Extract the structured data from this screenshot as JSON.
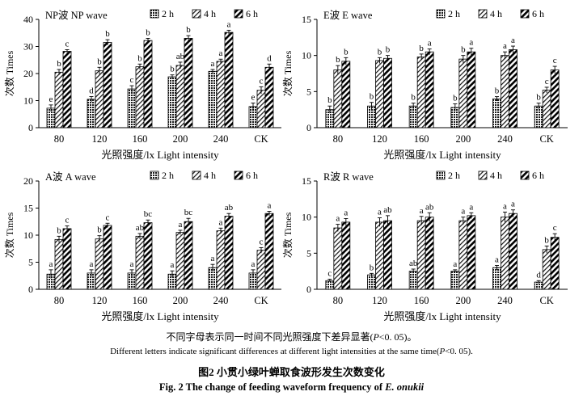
{
  "chart_data": [
    {
      "type": "bar",
      "title": "NP波  NP wave",
      "xlabel": "光照强度/lx Light intensity",
      "ylabel": "次数 Times",
      "ylim": [
        0,
        40
      ],
      "yticks": [
        0,
        10,
        20,
        30,
        40
      ],
      "categories": [
        "80",
        "120",
        "160",
        "200",
        "240",
        "CK"
      ],
      "legend": [
        "2 h",
        "4 h",
        "6 h"
      ],
      "legend_position": "top",
      "grid": false,
      "series": [
        {
          "name": "2 h",
          "values": [
            7.2,
            10.5,
            14.3,
            18.8,
            20.8,
            7.8
          ],
          "errors": [
            1.2,
            1.0,
            1.2,
            0.7,
            0.7,
            1.3
          ],
          "letters": [
            "e",
            "d",
            "c",
            "b",
            "a",
            "e"
          ]
        },
        {
          "name": "4 h",
          "values": [
            20.5,
            21.0,
            22.5,
            23.0,
            24.5,
            13.8
          ],
          "errors": [
            1.0,
            1.3,
            1.0,
            1.2,
            0.8,
            1.3
          ],
          "letters": [
            "b",
            "b",
            "b",
            "ab",
            "a",
            "c"
          ]
        },
        {
          "name": "6 h",
          "values": [
            28.2,
            31.5,
            32.2,
            33.0,
            35.2,
            22.3
          ],
          "errors": [
            0.6,
            1.0,
            0.8,
            1.0,
            0.8,
            1.2
          ],
          "letters": [
            "c",
            "b",
            "b",
            "b",
            "a",
            "d"
          ]
        }
      ]
    },
    {
      "type": "bar",
      "title": "E波 E wave",
      "xlabel": "光照强度/lx Light intensity",
      "ylabel": "次数 Times",
      "ylim": [
        0,
        15
      ],
      "yticks": [
        0,
        5,
        10,
        15
      ],
      "categories": [
        "80",
        "120",
        "160",
        "200",
        "240",
        "CK"
      ],
      "legend": [
        "2 h",
        "4 h",
        "6 h"
      ],
      "legend_position": "top",
      "grid": false,
      "series": [
        {
          "name": "2 h",
          "values": [
            2.5,
            3.0,
            3.0,
            2.8,
            4.0,
            3.0
          ],
          "errors": [
            0.5,
            0.5,
            0.4,
            0.5,
            0.3,
            0.4
          ],
          "letters": [
            "b",
            "b",
            "b",
            "b",
            "b",
            "b"
          ]
        },
        {
          "name": "4 h",
          "values": [
            8.0,
            9.3,
            9.8,
            9.5,
            10.0,
            5.2
          ],
          "errors": [
            0.6,
            0.4,
            0.4,
            0.5,
            0.5,
            0.4
          ],
          "letters": [
            "b",
            "b",
            "b",
            "b",
            "a",
            "c"
          ]
        },
        {
          "name": "6 h",
          "values": [
            9.2,
            9.6,
            10.5,
            10.5,
            10.8,
            8.0
          ],
          "errors": [
            0.5,
            0.4,
            0.4,
            0.5,
            0.5,
            0.5
          ],
          "letters": [
            "b",
            "b",
            "a",
            "a",
            "a",
            "c"
          ]
        }
      ]
    },
    {
      "type": "bar",
      "title": "A波 A wave",
      "xlabel": "光照强度/lx Light intensity",
      "ylabel": "次数 Times",
      "ylim": [
        0,
        20
      ],
      "yticks": [
        0,
        5,
        10,
        15,
        20
      ],
      "categories": [
        "80",
        "120",
        "160",
        "200",
        "240",
        "CK"
      ],
      "legend": [
        "2 h",
        "4 h",
        "6 h"
      ],
      "legend_position": "top",
      "grid": false,
      "series": [
        {
          "name": "2 h",
          "values": [
            2.8,
            3.0,
            3.0,
            2.8,
            4.0,
            3.0
          ],
          "errors": [
            0.8,
            0.6,
            0.6,
            0.6,
            0.6,
            0.6
          ],
          "letters": [
            "a",
            "a",
            "a",
            "a",
            "a",
            "a"
          ]
        },
        {
          "name": "4 h",
          "values": [
            9.2,
            9.3,
            9.8,
            10.5,
            10.8,
            7.2
          ],
          "errors": [
            0.6,
            0.6,
            0.5,
            0.4,
            0.5,
            0.5
          ],
          "letters": [
            "b",
            "b",
            "ab",
            "a",
            "a",
            "c"
          ]
        },
        {
          "name": "6 h",
          "values": [
            11.2,
            11.8,
            12.3,
            12.5,
            13.5,
            14.0
          ],
          "errors": [
            0.5,
            0.4,
            0.5,
            0.6,
            0.5,
            0.4
          ],
          "letters": [
            "c",
            "c",
            "bc",
            "bc",
            "ab",
            "a"
          ]
        }
      ]
    },
    {
      "type": "bar",
      "title": "R波 R wave",
      "xlabel": "光照强度/lx Light intensity",
      "ylabel": "次数 Times",
      "ylim": [
        0,
        15
      ],
      "yticks": [
        0,
        5,
        10,
        15
      ],
      "categories": [
        "80",
        "120",
        "160",
        "200",
        "240",
        "CK"
      ],
      "legend": [
        "2 h",
        "4 h",
        "6 h"
      ],
      "legend_position": "top",
      "grid": false,
      "series": [
        {
          "name": "2 h",
          "values": [
            1.2,
            2.0,
            2.5,
            2.5,
            3.0,
            1.0
          ],
          "errors": [
            0.2,
            0.2,
            0.3,
            0.2,
            0.3,
            0.2
          ],
          "letters": [
            "c",
            "b",
            "ab",
            "a",
            "a",
            "d"
          ]
        },
        {
          "name": "4 h",
          "values": [
            8.5,
            9.3,
            9.5,
            9.5,
            10.0,
            5.5
          ],
          "errors": [
            0.5,
            0.6,
            0.6,
            0.5,
            0.7,
            0.5
          ],
          "letters": [
            "a",
            "a",
            "a",
            "a",
            "a",
            "b"
          ]
        },
        {
          "name": "6 h",
          "values": [
            9.3,
            9.5,
            10.0,
            10.2,
            10.5,
            7.2
          ],
          "errors": [
            0.5,
            0.7,
            0.6,
            0.4,
            0.5,
            0.5
          ],
          "letters": [
            "a",
            "ab",
            "ab",
            "a",
            "a",
            "c"
          ]
        }
      ]
    }
  ],
  "caption": {
    "note_cn_before": "不同字母表示同一时间不同光照强度下差异显著(",
    "note_cn_italic": "P",
    "note_cn_after": "<0. 05)。",
    "note_en_before": "Different letters indicate significant differences at different light intensities at the same time(",
    "note_en_italic": "P",
    "note_en_after": "<0. 05).",
    "title_cn": "图2   小贯小绿叶蝉取食波形发生次数变化",
    "title_en_before": "Fig. 2    The change of feeding waveform frequency of ",
    "title_en_italic": "E. onukii"
  }
}
